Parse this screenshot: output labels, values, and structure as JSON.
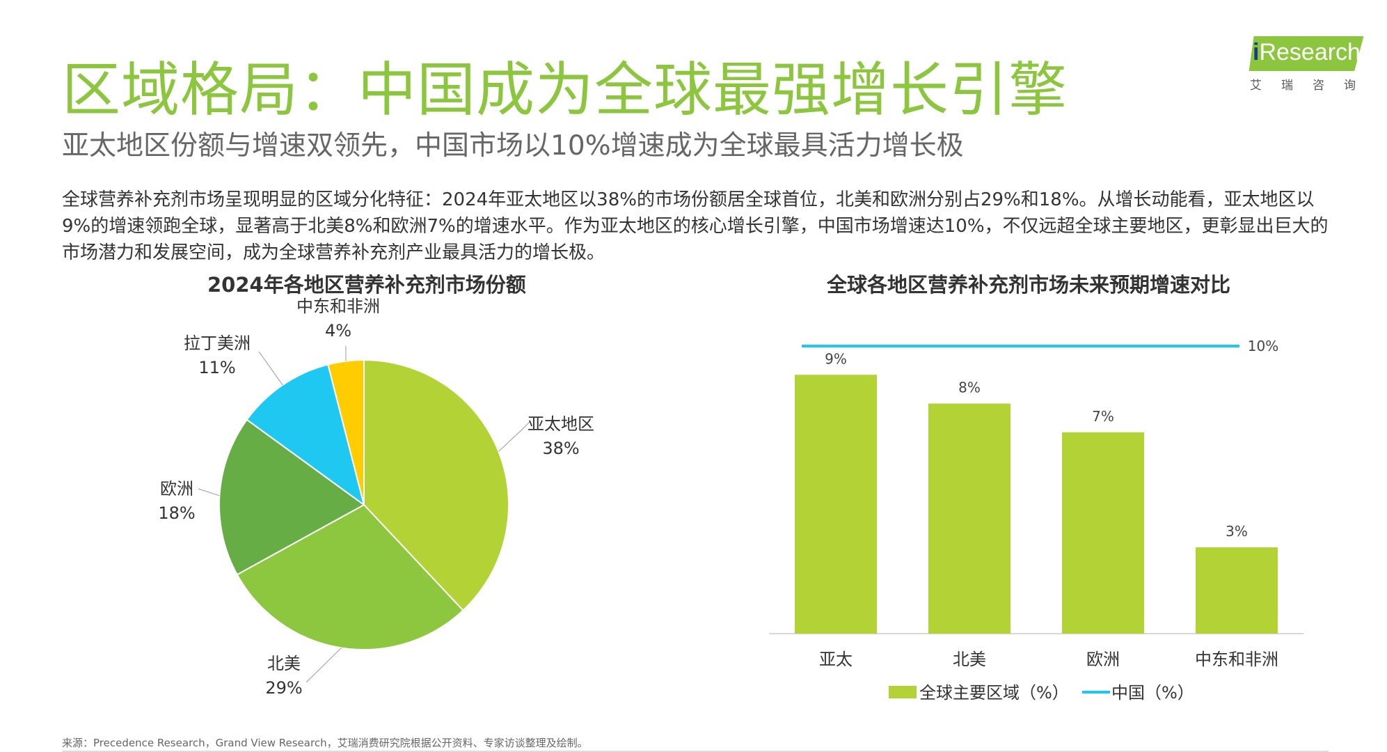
{
  "header": {
    "title": "区域格局：中国成为全球最强增长引擎",
    "subtitle": "亚太地区份额与增速双领先，中国市场以10%增速成为全球最具活力增长极"
  },
  "logo": {
    "brand": "Research",
    "brand_i": "i",
    "sub": "艾瑞咨询",
    "color": "#8cc63f"
  },
  "body_text": "全球营养补充剂市场呈现明显的区域分化特征：2024年亚太地区以38%的市场份额居全球首位，北美和欧洲分别占29%和18%。从增长动能看，亚太地区以9%的增速领跑全球，显著高于北美8%和欧洲7%的增速水平。作为亚太地区的核心增长引擎，中国市场增速达10%，不仅远超全球主要地区，更彰显出巨大的市场潜力和发展空间，成为全球营养补充剂产业最具活力的增长极。",
  "source": "来源：Precedence Research，Grand View Research，艾瑞消费研究院根据公开资料、专家访谈整理及绘制。",
  "chart_data": [
    {
      "type": "pie",
      "title": "2024年各地区营养补充剂市场份额",
      "slices": [
        {
          "name": "亚太地区",
          "value": 38,
          "label": "38%",
          "color": "#b2d235"
        },
        {
          "name": "北美",
          "value": 29,
          "label": "29%",
          "color": "#8dc63f"
        },
        {
          "name": "欧洲",
          "value": 18,
          "label": "18%",
          "color": "#67ad46"
        },
        {
          "name": "拉丁美洲",
          "value": 11,
          "label": "11%",
          "color": "#1fc8f0"
        },
        {
          "name": "中东和非洲",
          "value": 4,
          "label": "4%",
          "color": "#ffcc00"
        }
      ]
    },
    {
      "type": "bar",
      "title": "全球各地区营养补充剂市场未来预期增速对比",
      "categories": [
        "亚太",
        "北美",
        "欧洲",
        "中东和非洲"
      ],
      "series": [
        {
          "name": "全球主要区域（%）",
          "values": [
            9,
            8,
            7,
            3
          ],
          "labels": [
            "9%",
            "8%",
            "7%",
            "3%"
          ],
          "color": "#b2d235"
        }
      ],
      "reference_line": {
        "name": "中国（%）",
        "value": 10,
        "label": "10%",
        "color": "#1fc8f0"
      },
      "ylim": [
        0,
        11.5
      ],
      "legend": "bottom"
    }
  ]
}
